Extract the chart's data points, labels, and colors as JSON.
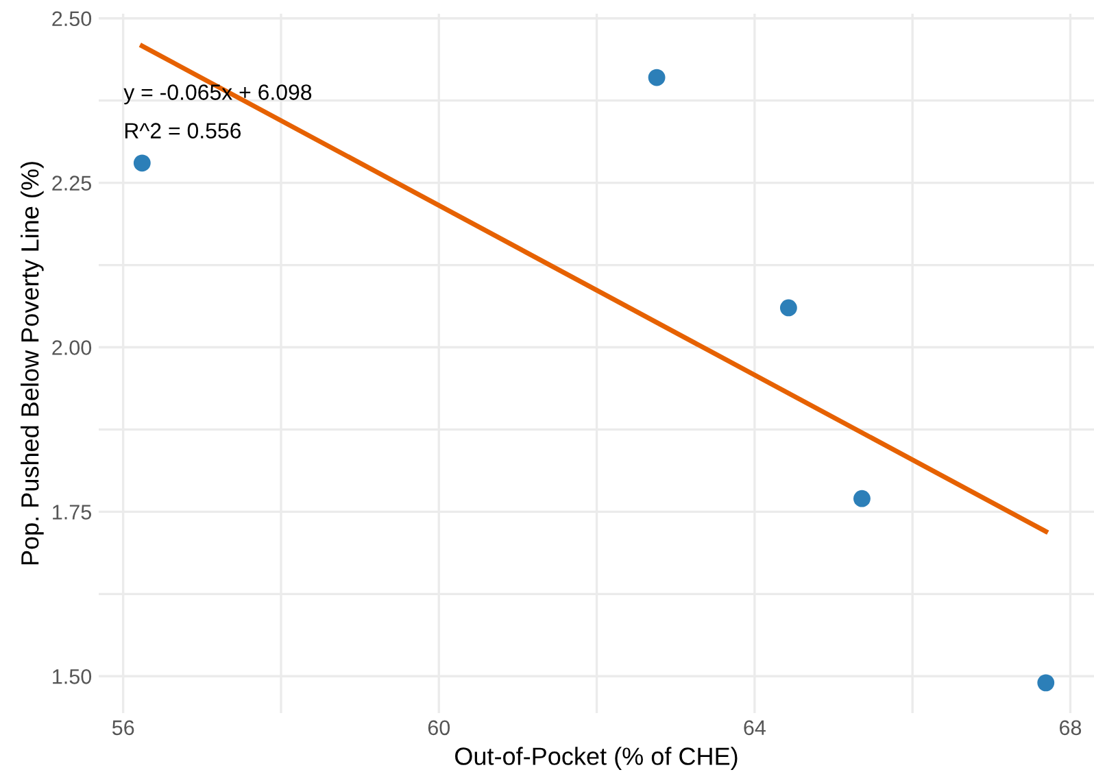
{
  "chart_data": {
    "type": "scatter",
    "xlabel": "Out-of-Pocket (% of CHE)",
    "ylabel": "Pop. Pushed Below Poverty Line (%)",
    "annotations": [
      "y = -0.065x + 6.098",
      "R^2 = 0.556"
    ],
    "series": [
      {
        "marker": "circle",
        "color": "#2c7fb8",
        "x": [
          56.24,
          62.76,
          64.43,
          65.36,
          67.69
        ],
        "values": [
          2.28,
          2.41,
          2.06,
          1.77,
          1.49
        ]
      },
      {
        "type": "line",
        "color": "#e66101",
        "x": [
          56.24,
          67.69
        ],
        "values": [
          2.458,
          1.72
        ]
      }
    ],
    "grid": true,
    "xlim": [
      55.69,
      68.3
    ],
    "ylim": [
      1.444,
      2.507
    ],
    "xticks": [
      56,
      {
        "value": 58,
        "label": null
      },
      60,
      {
        "value": 62,
        "label": null
      },
      64,
      {
        "value": 66,
        "label": null
      },
      68
    ],
    "yticks": [
      {
        "value": 1.5,
        "label": "1.50"
      },
      {
        "value": 1.625,
        "label": null
      },
      {
        "value": 1.75,
        "label": "1.75"
      },
      {
        "value": 1.875,
        "label": null
      },
      {
        "value": 2.0,
        "label": "2.00"
      },
      {
        "value": 2.125,
        "label": null
      },
      {
        "value": 2.25,
        "label": "2.25"
      },
      {
        "value": 2.375,
        "label": null
      },
      {
        "value": 2.5,
        "label": "2.50"
      }
    ]
  }
}
